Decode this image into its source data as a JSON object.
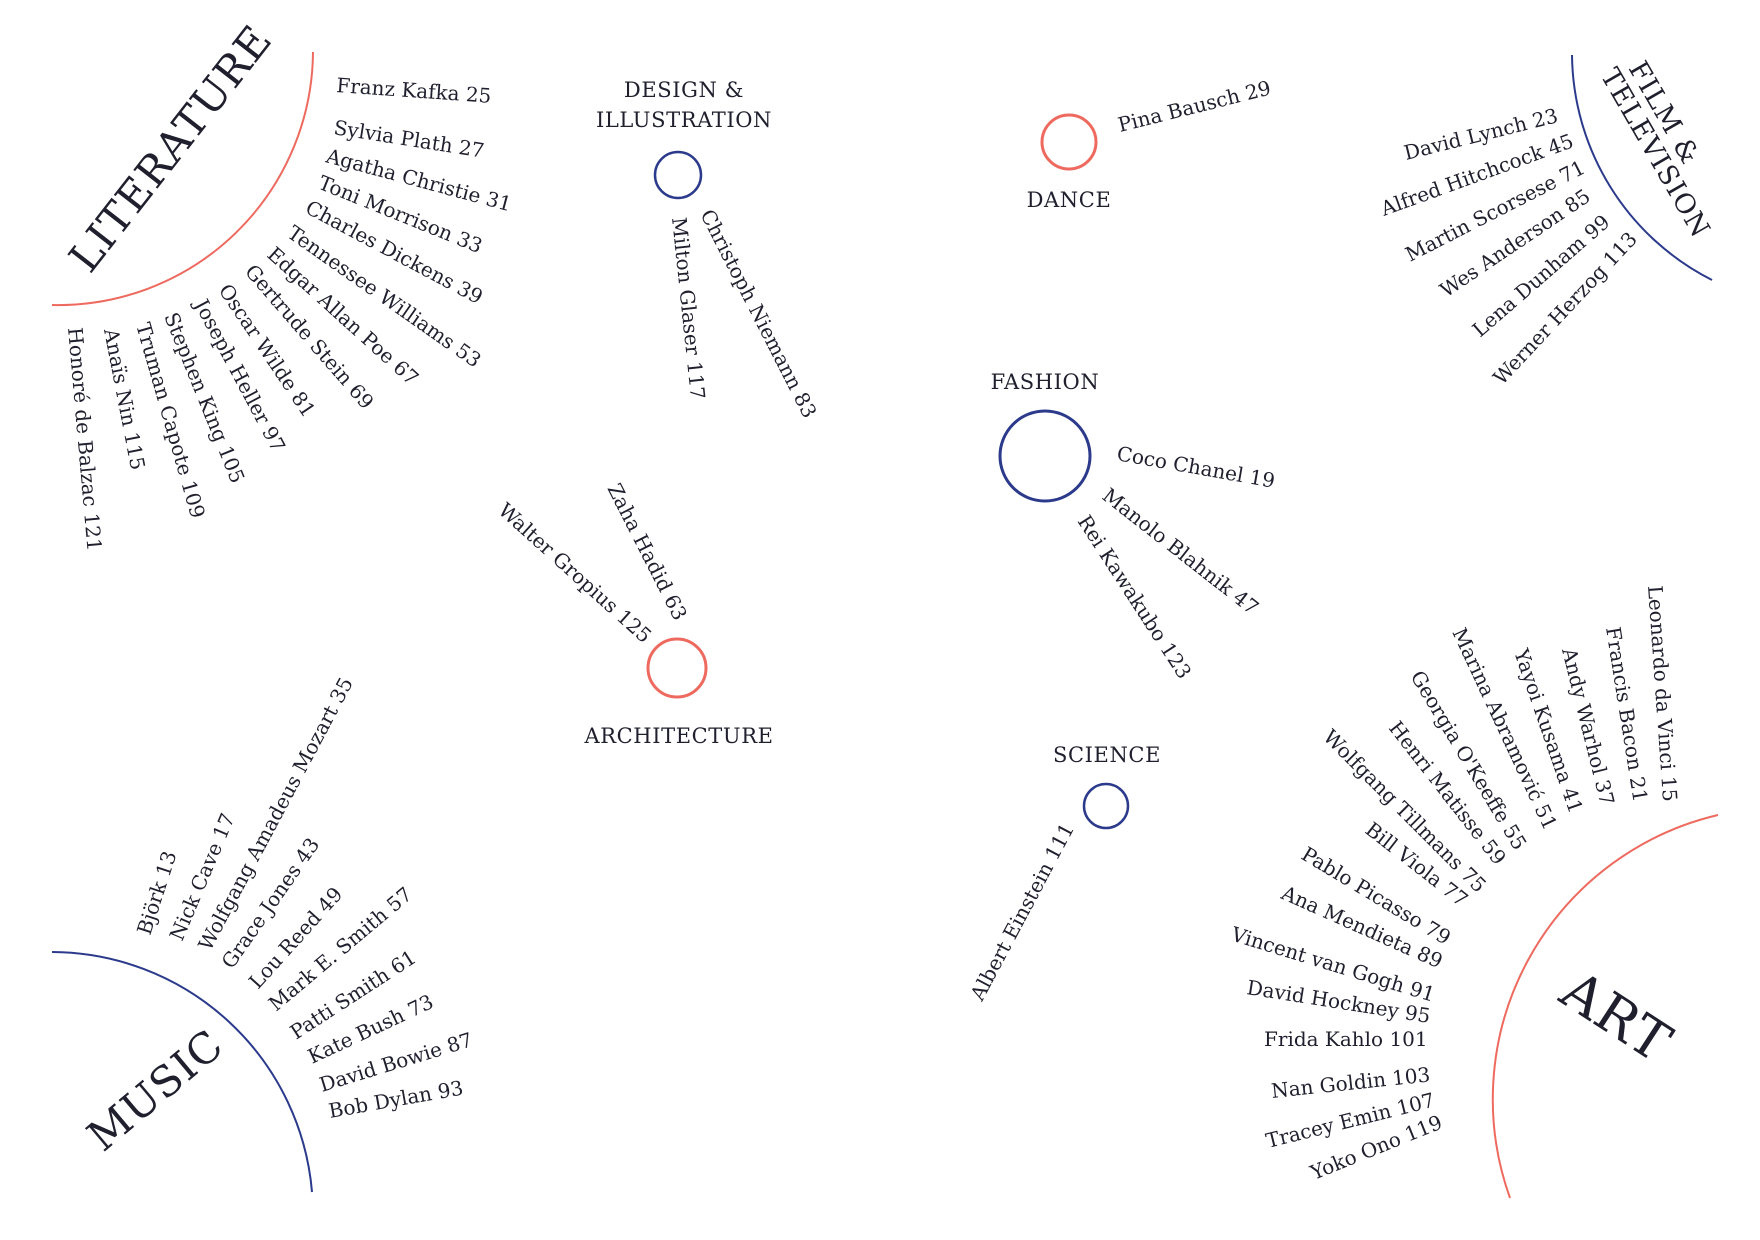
{
  "colors": {
    "red": "#ee6a5f",
    "blue": "#2c3a8c",
    "text": "#1f1f2e"
  },
  "groups": {
    "literature": {
      "label": "LITERATURE",
      "color": "red",
      "names": [
        "Franz Kafka 25",
        "Sylvia Plath 27",
        "Agatha Christie 31",
        "Toni Morrison 33",
        "Charles Dickens 39",
        "Tennessee Williams 53",
        "Edgar Allan Poe 67",
        "Gertrude Stein 69",
        "Oscar Wilde 81",
        "Joseph Heller 97",
        "Stephen King 105",
        "Truman Capote 109",
        "Anaïs Nin 115",
        "Honoré de Balzac 121"
      ]
    },
    "film": {
      "label_line1": "FILM &",
      "label_line2": "TELEVISION",
      "color": "blue",
      "names": [
        "David Lynch 23",
        "Alfred Hitchcock 45",
        "Martin Scorsese 71",
        "Wes Anderson 85",
        "Lena Dunham 99",
        "Werner Herzog 113"
      ]
    },
    "music": {
      "label": "MUSIC",
      "color": "blue",
      "names": [
        "Björk 13",
        "Nick Cave 17",
        "Wolfgang Amadeus Mozart 35",
        "Grace Jones 43",
        "Lou Reed 49",
        "Mark E. Smith 57",
        "Patti Smith 61",
        "Kate Bush 73",
        "David Bowie 87",
        "Bob Dylan 93"
      ]
    },
    "art": {
      "label": "ART",
      "color": "red",
      "names": [
        "Leonardo da Vinci 15",
        "Francis Bacon 21",
        "Andy Warhol 37",
        "Yayoi Kusama 41",
        "Marina Abramović 51",
        "Georgia O'Keeffe 55",
        "Henri Matisse 59",
        "Wolfgang Tillmans 75",
        "Bill Viola 77",
        "Pablo Picasso 79",
        "Ana Mendieta 89",
        "Vincent van Gogh 91",
        "David Hockney 95",
        "Frida Kahlo 101",
        "Nan Goldin 103",
        "Tracey Emin 107",
        "Yoko Ono 119"
      ]
    },
    "design": {
      "label_line1": "DESIGN &",
      "label_line2": "ILLUSTRATION",
      "color": "blue",
      "names": [
        "Christoph Niemann 83",
        "Milton Glaser 117"
      ]
    },
    "dance": {
      "label": "DANCE",
      "color": "red",
      "names": [
        "Pina Bausch 29"
      ]
    },
    "fashion": {
      "label": "FASHION",
      "color": "blue",
      "names": [
        "Coco Chanel 19",
        "Manolo Blahnik 47",
        "Rei Kawakubo 123"
      ]
    },
    "architecture": {
      "label": "ARCHITECTURE",
      "color": "red",
      "names": [
        "Zaha Hadid 63",
        "Walter Gropius 125"
      ]
    },
    "science": {
      "label": "SCIENCE",
      "color": "blue",
      "names": [
        "Albert Einstein 111"
      ]
    }
  }
}
